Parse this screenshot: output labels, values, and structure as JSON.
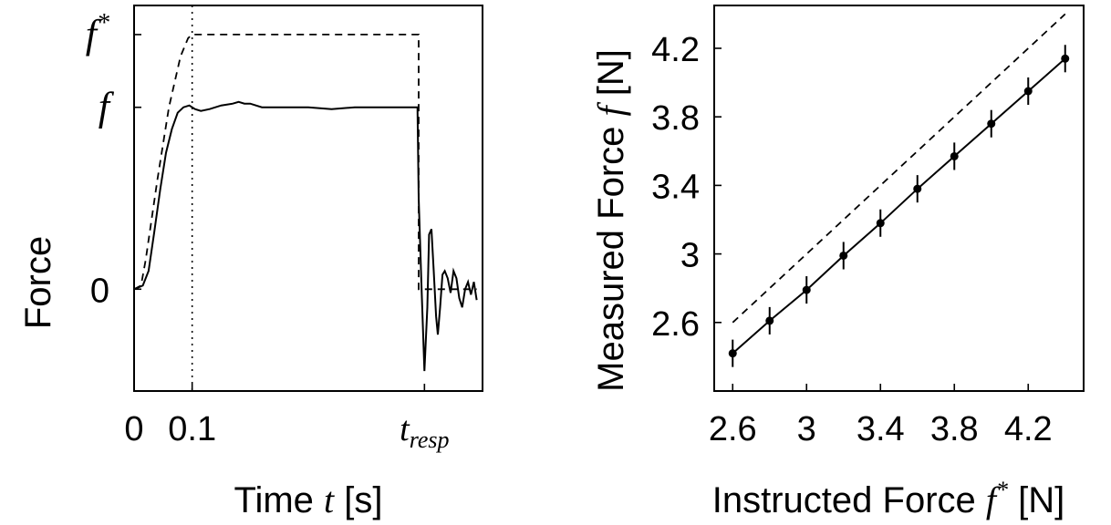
{
  "charts": [
    {
      "type": "line",
      "ylabel": "Force",
      "xlabel": {
        "text": "Time ",
        "var": "t",
        "unit": " [s]"
      },
      "x_ticks": [
        {
          "label": "0",
          "x": 0
        },
        {
          "label": "0.1",
          "x": 0.1
        },
        {
          "label": "t",
          "sub": "resp",
          "x": 0.5
        }
      ],
      "y_ticks": [
        {
          "label": "0",
          "y": 0,
          "style": "sans"
        },
        {
          "label": "f",
          "y": 1,
          "style": "italic"
        },
        {
          "label": "f",
          "sup": "*",
          "y": 1.4,
          "style": "italic"
        }
      ],
      "xlim": [
        0,
        0.6
      ],
      "ylim": [
        -0.56,
        1.56
      ],
      "guide_lines": [
        {
          "type": "vertical",
          "x": 0.1,
          "style": "dotted"
        }
      ],
      "series": [
        {
          "style": "dashed",
          "x": [
            0.0,
            0.012,
            0.02,
            0.04,
            0.06,
            0.08,
            0.093,
            0.1,
            0.49,
            0.49,
            0.59
          ],
          "values": [
            0.0,
            0.02,
            0.16,
            0.6,
            1.0,
            1.28,
            1.38,
            1.4,
            1.4,
            0.0,
            0.0
          ]
        },
        {
          "style": "solid",
          "x": [
            0.0,
            0.015,
            0.025,
            0.035,
            0.045,
            0.055,
            0.065,
            0.075,
            0.085,
            0.095,
            0.105,
            0.115,
            0.13,
            0.15,
            0.17,
            0.18,
            0.19,
            0.2,
            0.22,
            0.26,
            0.3,
            0.34,
            0.38,
            0.42,
            0.488,
            0.49,
            0.495,
            0.5,
            0.505,
            0.508,
            0.512,
            0.516,
            0.52,
            0.523,
            0.527,
            0.531,
            0.535,
            0.54,
            0.545,
            0.55,
            0.555,
            0.56,
            0.565,
            0.57,
            0.575,
            0.58,
            0.585,
            0.59
          ],
          "values": [
            0.0,
            0.02,
            0.1,
            0.32,
            0.55,
            0.75,
            0.88,
            0.97,
            1.0,
            1.01,
            0.99,
            0.98,
            0.99,
            1.01,
            1.02,
            1.03,
            1.02,
            1.02,
            1.0,
            1.0,
            1.0,
            0.99,
            1.0,
            1.0,
            1.0,
            0.5,
            0.0,
            -0.45,
            -0.1,
            0.3,
            0.33,
            0.1,
            -0.15,
            -0.25,
            -0.1,
            0.08,
            0.1,
            0.06,
            -0.02,
            0.1,
            0.06,
            -0.05,
            -0.1,
            0.0,
            0.04,
            -0.03,
            0.04,
            -0.06
          ]
        }
      ]
    },
    {
      "type": "line",
      "ylabel": {
        "text": "Measured Force ",
        "var": "f",
        "unit": " [N]"
      },
      "xlabel": {
        "text": "Instructed Force ",
        "var": "f",
        "sup": "*",
        "unit": " [N]"
      },
      "x_ticks": [
        {
          "label": "2.6",
          "x": 2.6
        },
        {
          "label": "3",
          "x": 3.0
        },
        {
          "label": "3.4",
          "x": 3.4
        },
        {
          "label": "3.8",
          "x": 3.8
        },
        {
          "label": "4.2",
          "x": 4.2
        }
      ],
      "y_ticks": [
        {
          "label": "2.6",
          "y": 2.6
        },
        {
          "label": "3",
          "y": 3.0
        },
        {
          "label": "3.4",
          "y": 3.4
        },
        {
          "label": "3.8",
          "y": 3.8
        },
        {
          "label": "4.2",
          "y": 4.2
        }
      ],
      "xlim": [
        2.5,
        4.5
      ],
      "ylim": [
        2.2,
        4.45
      ],
      "series": [
        {
          "style": "dashed",
          "x": [
            2.6,
            4.4
          ],
          "values": [
            2.6,
            4.4
          ]
        },
        {
          "style": "solid-markers",
          "x": [
            2.6,
            2.8,
            3.0,
            3.2,
            3.4,
            3.6,
            3.8,
            4.0,
            4.2,
            4.4
          ],
          "values": [
            2.42,
            2.61,
            2.79,
            2.99,
            3.18,
            3.38,
            3.57,
            3.76,
            3.95,
            4.14
          ],
          "error": [
            0.08,
            0.08,
            0.08,
            0.08,
            0.08,
            0.08,
            0.08,
            0.08,
            0.08,
            0.08
          ]
        }
      ]
    }
  ]
}
